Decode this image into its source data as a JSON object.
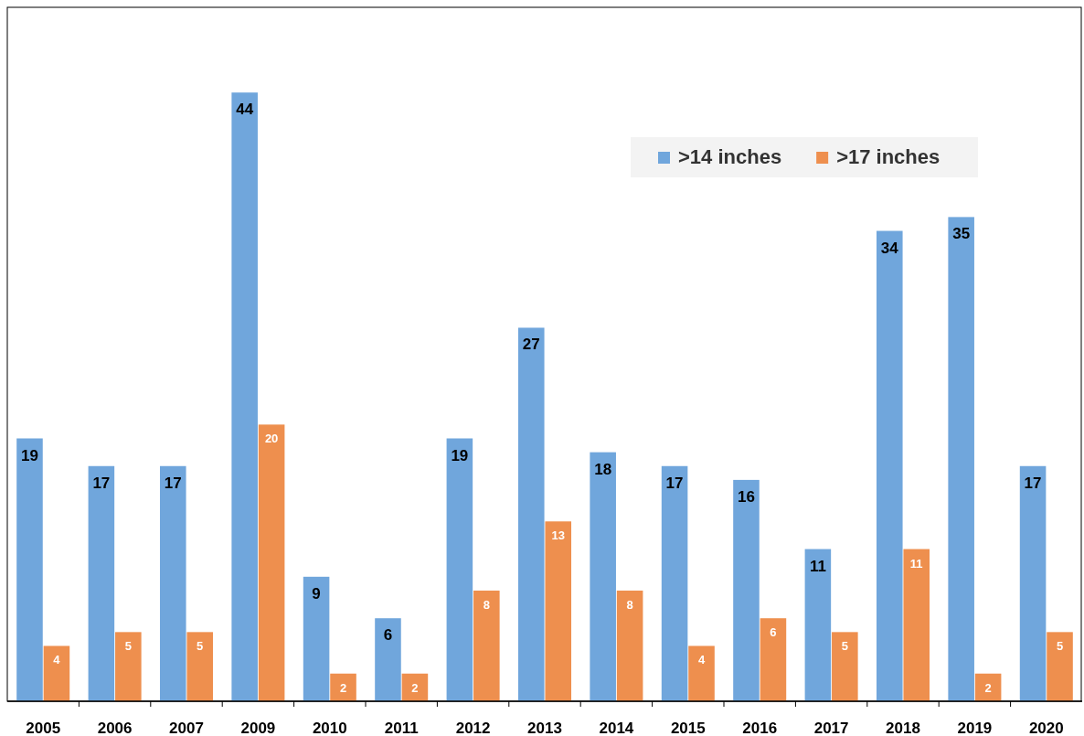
{
  "chart_data": {
    "type": "bar",
    "categories": [
      "2005",
      "2006",
      "2007",
      "2009",
      "2010",
      "2011",
      "2012",
      "2013",
      "2014",
      "2015",
      "2016",
      "2017",
      "2018",
      "2019",
      "2020"
    ],
    "series": [
      {
        "name": ">14 inches",
        "color": "#70a6dc",
        "values": [
          19,
          17,
          17,
          44,
          9,
          6,
          19,
          27,
          18,
          17,
          16,
          11,
          34,
          35,
          17
        ]
      },
      {
        "name": ">17 inches",
        "color": "#ee8f4e",
        "values": [
          4,
          5,
          5,
          20,
          2,
          2,
          8,
          13,
          8,
          4,
          6,
          5,
          11,
          2,
          5
        ]
      }
    ],
    "data_labels": true,
    "legend": "top right"
  }
}
